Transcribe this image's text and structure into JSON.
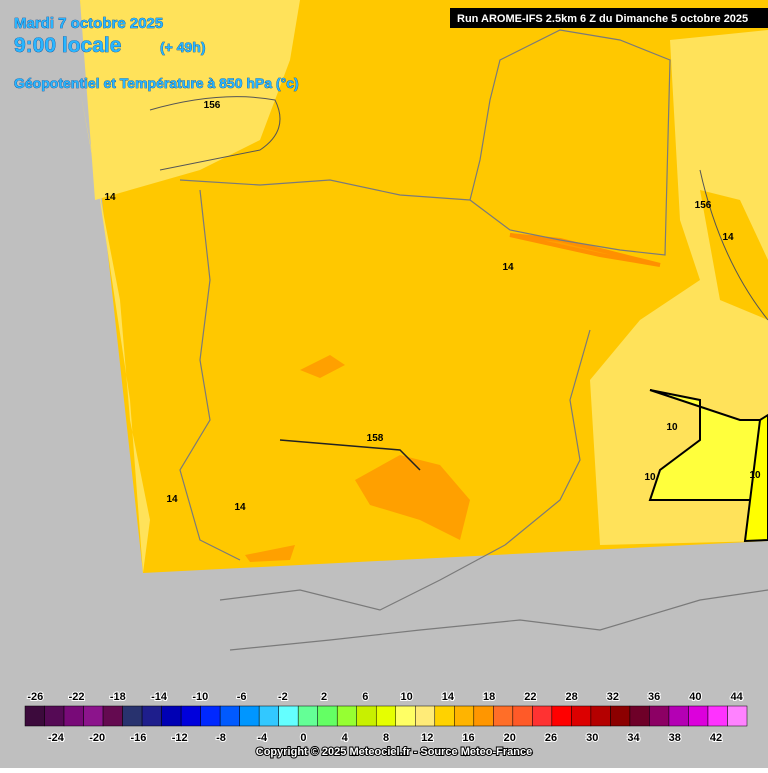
{
  "header": {
    "date": "Mardi 7 octobre 2025",
    "time": "9:00 locale",
    "lead": "(+ 49h)",
    "field": "Géopotentiel et Température à 850 hPa (°c)",
    "run": "Run AROME-IFS 2.5km 6 Z du Dimanche 5 octobre 2025"
  },
  "contour_labels": [
    156,
    14,
    14,
    156,
    14,
    158,
    14,
    14,
    10,
    10,
    10
  ],
  "colorbar": {
    "ticks": [
      -26,
      -24,
      -22,
      -20,
      -18,
      -16,
      -14,
      -12,
      -10,
      -8,
      -6,
      -4,
      -2,
      0,
      2,
      4,
      6,
      8,
      10,
      12,
      14,
      16,
      18,
      20,
      22,
      26,
      28,
      30,
      32,
      34,
      36,
      38,
      40,
      42,
      44
    ],
    "colors": [
      "#3c0a3c",
      "#550a55",
      "#780a78",
      "#8c148c",
      "#640a50",
      "#28326e",
      "#1e1e8c",
      "#0000b4",
      "#0000dc",
      "#0028ff",
      "#005aff",
      "#0096ff",
      "#32c8ff",
      "#64ffff",
      "#64ff96",
      "#64ff64",
      "#96ff32",
      "#c8f000",
      "#e6ff00",
      "#ffff64",
      "#ffeb78",
      "#ffd200",
      "#ffb400",
      "#ff9600",
      "#ff6e28",
      "#ff5a28",
      "#ff3232",
      "#ff0000",
      "#dc0000",
      "#b40000",
      "#8c0000",
      "#6e0028",
      "#8c0064",
      "#b400b4",
      "#dc00dc",
      "#ff32ff",
      "#ff82ff"
    ]
  },
  "copyright": "Copyright © 2025 Meteociel.fr - Source Meteo-France"
}
